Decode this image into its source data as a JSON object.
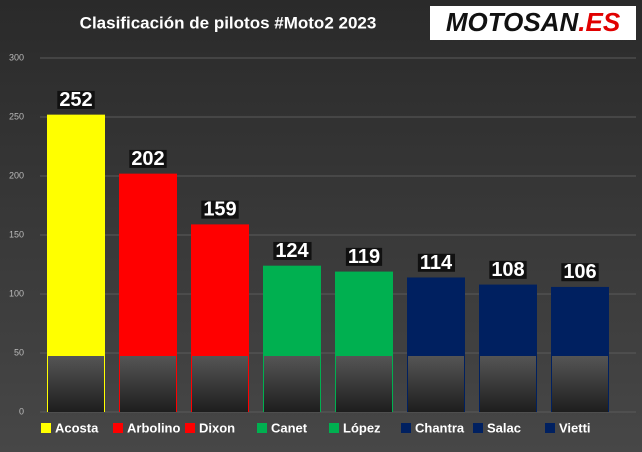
{
  "chart_data": {
    "type": "bar",
    "title": "Clasificación de pilotos #Moto2 2023",
    "logo": [
      "MOTOSAN",
      ".ES"
    ],
    "categories": [
      "Acosta",
      "Arbolino",
      "Dixon",
      "Canet",
      "López",
      "Chantra",
      "Salac",
      "Vietti"
    ],
    "values": [
      252,
      202,
      159,
      124,
      119,
      114,
      108,
      106
    ],
    "colors": [
      "#ffff00",
      "#ff0000",
      "#ff0000",
      "#00b050",
      "#00b050",
      "#002060",
      "#002060",
      "#002060"
    ],
    "ylim": [
      0,
      300
    ],
    "yticks": [
      0,
      50,
      100,
      150,
      200,
      250,
      300
    ],
    "grid": true
  }
}
